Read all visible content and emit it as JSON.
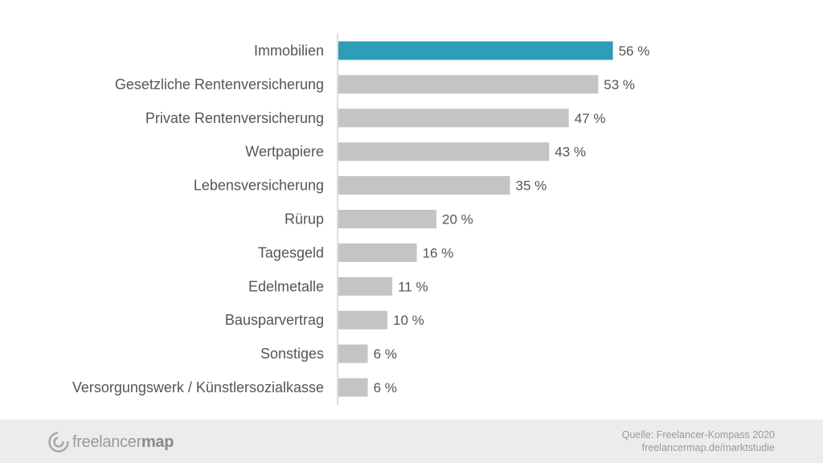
{
  "chart_data": {
    "type": "bar",
    "orientation": "horizontal",
    "categories": [
      "Immobilien",
      "Gesetzliche Rentenversicherung",
      "Private Rentenversicherung",
      "Wertpapiere",
      "Lebensversicherung",
      "Rürup",
      "Tagesgeld",
      "Edelmetalle",
      "Bausparvertrag",
      "Sonstiges",
      "Versorgungswerk / Künstlersozialkasse"
    ],
    "values": [
      56,
      53,
      47,
      43,
      35,
      20,
      16,
      11,
      10,
      6,
      6
    ],
    "value_labels": [
      "56 %",
      "53 %",
      "47 %",
      "43 %",
      "35 %",
      "20 %",
      "16 %",
      "11 %",
      "10 %",
      "6 %",
      "6 %"
    ],
    "highlight_index": 0,
    "colors": {
      "highlight": "#2f9db5",
      "default": "#c4c4c4",
      "axis": "#bbbbbb",
      "text": "#555555"
    },
    "grid": false,
    "legend": "none"
  },
  "footer": {
    "logo_name": "freelancermap",
    "logo_regular": "freelancer",
    "logo_bold": "map",
    "source_line1": "Quelle: Freelancer-Kompass 2020",
    "source_line2": "freelancermap.de/marktstudie"
  }
}
